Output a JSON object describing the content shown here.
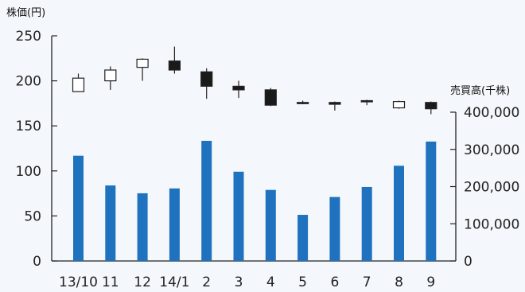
{
  "chart_data": {
    "type": "bar",
    "categories": [
      "13/10",
      "11",
      "12",
      "14/1",
      "2",
      "3",
      "4",
      "5",
      "6",
      "7",
      "8",
      "9"
    ],
    "left_axis_title": "株価(円)",
    "right_axis_title": "売買高(千株)",
    "ylim_left": [
      0,
      250
    ],
    "ylim_right": [
      0,
      400000
    ],
    "left_ticks": [
      "0",
      "50",
      "100",
      "150",
      "200",
      "250"
    ],
    "right_ticks": [
      "0",
      "100,000",
      "200,000",
      "300,000",
      "400,000"
    ],
    "candlesticks": [
      {
        "open": 188,
        "high": 208,
        "low": 188,
        "close": 203
      },
      {
        "open": 200,
        "high": 216,
        "low": 190,
        "close": 212
      },
      {
        "open": 215,
        "high": 225,
        "low": 200,
        "close": 224
      },
      {
        "open": 222,
        "high": 238,
        "low": 208,
        "close": 212
      },
      {
        "open": 210,
        "high": 214,
        "low": 180,
        "close": 194
      },
      {
        "open": 194,
        "high": 200,
        "low": 181,
        "close": 190
      },
      {
        "open": 190,
        "high": 192,
        "low": 172,
        "close": 173
      },
      {
        "open": 176,
        "high": 178,
        "low": 174,
        "close": 175
      },
      {
        "open": 176,
        "high": 177,
        "low": 167,
        "close": 174
      },
      {
        "open": 178,
        "high": 179,
        "low": 173,
        "close": 177
      },
      {
        "open": 170,
        "high": 178,
        "low": 169,
        "close": 177
      },
      {
        "open": 176,
        "high": 177,
        "low": 163,
        "close": 169
      }
    ],
    "volume": [
      283000,
      203000,
      182000,
      195000,
      323000,
      240000,
      191000,
      124000,
      172000,
      199000,
      256000,
      321000
    ],
    "colors": {
      "volume": "#1f72bd",
      "candle_up": "#ffffff",
      "candle_down": "#1a1a1a",
      "candle_edge": "#222222"
    },
    "grid": false
  }
}
